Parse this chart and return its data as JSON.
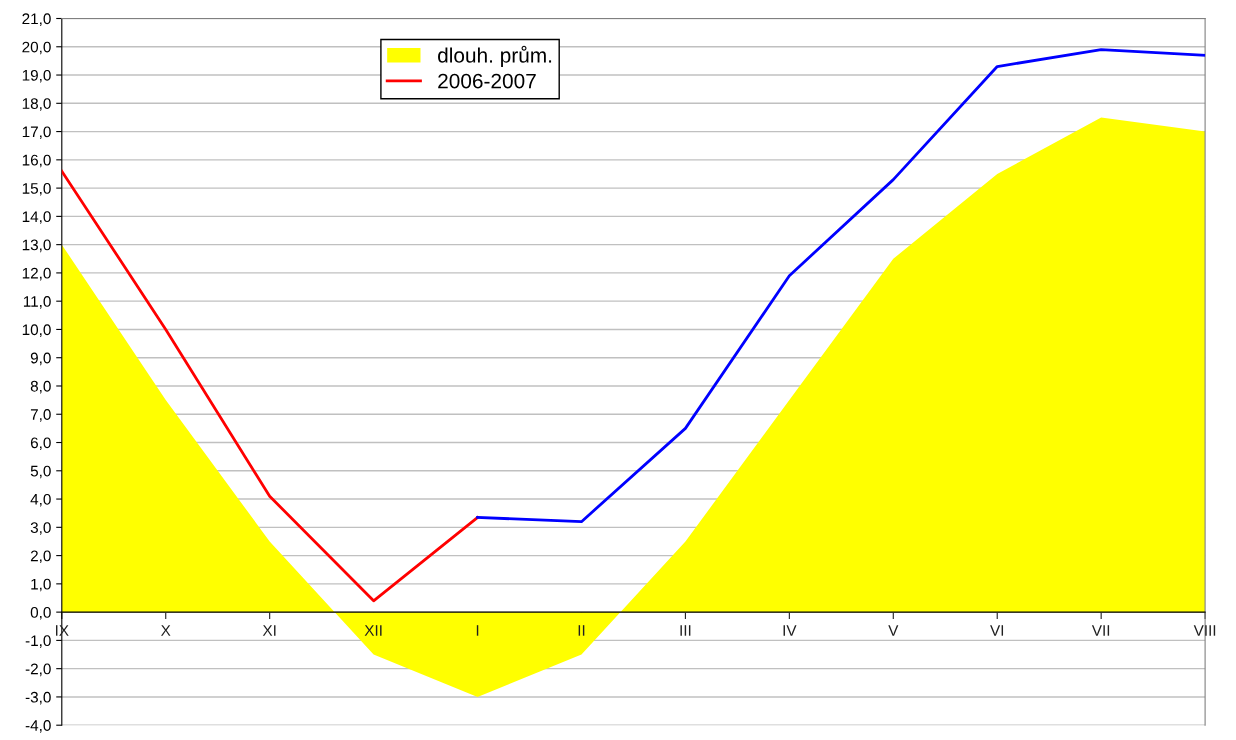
{
  "chart_data": {
    "type": "area",
    "categories": [
      "IX",
      "X",
      "XI",
      "XII",
      "I",
      "II",
      "III",
      "IV",
      "V",
      "VI",
      "VII",
      "VIII"
    ],
    "series": [
      {
        "name": "dlouh. prům.",
        "color": "#ffff00",
        "values": [
          13.0,
          7.5,
          2.5,
          -1.5,
          -3.0,
          -1.5,
          2.5,
          7.5,
          12.5,
          15.5,
          17.5,
          17.0
        ]
      },
      {
        "name": "2006-2007",
        "type": "line",
        "color": "#ff0000",
        "values": [
          15.6,
          10.0,
          4.1,
          0.4,
          3.35,
          null,
          null,
          null,
          null,
          null,
          null,
          null
        ]
      },
      {
        "type": "line",
        "color": "#0000ff",
        "values": [
          null,
          null,
          null,
          null,
          3.35,
          3.2,
          6.5,
          11.9,
          15.3,
          19.3,
          19.9,
          19.7
        ]
      }
    ],
    "ylim": [
      -4,
      21
    ],
    "yticks": [
      {
        "value": -4,
        "label": "-4,0"
      },
      {
        "value": -3,
        "label": "-3,0"
      },
      {
        "value": -2,
        "label": "-2,0"
      },
      {
        "value": -1,
        "label": "-1,0"
      },
      {
        "value": 0,
        "label": "0,0"
      },
      {
        "value": 1,
        "label": "1,0"
      },
      {
        "value": 2,
        "label": "2,0"
      },
      {
        "value": 3,
        "label": "3,0"
      },
      {
        "value": 4,
        "label": "4,0"
      },
      {
        "value": 5,
        "label": "5,0"
      },
      {
        "value": 6,
        "label": "6,0"
      },
      {
        "value": 7,
        "label": "7,0"
      },
      {
        "value": 8,
        "label": "8,0"
      },
      {
        "value": 9,
        "label": "9,0"
      },
      {
        "value": 10,
        "label": "10,0"
      },
      {
        "value": 11,
        "label": "11,0"
      },
      {
        "value": 12,
        "label": "12,0"
      },
      {
        "value": 13,
        "label": "13,0"
      },
      {
        "value": 14,
        "label": "14,0"
      },
      {
        "value": 15,
        "label": "15,0"
      },
      {
        "value": 16,
        "label": "16,0"
      },
      {
        "value": 17,
        "label": "17,0"
      },
      {
        "value": 18,
        "label": "18,0"
      },
      {
        "value": 19,
        "label": "19,0"
      },
      {
        "value": 20,
        "label": "20,0"
      },
      {
        "value": 21,
        "label": "21,0"
      }
    ],
    "grid": "y",
    "legend": "top",
    "marker": "none",
    "line_style": "solid"
  }
}
